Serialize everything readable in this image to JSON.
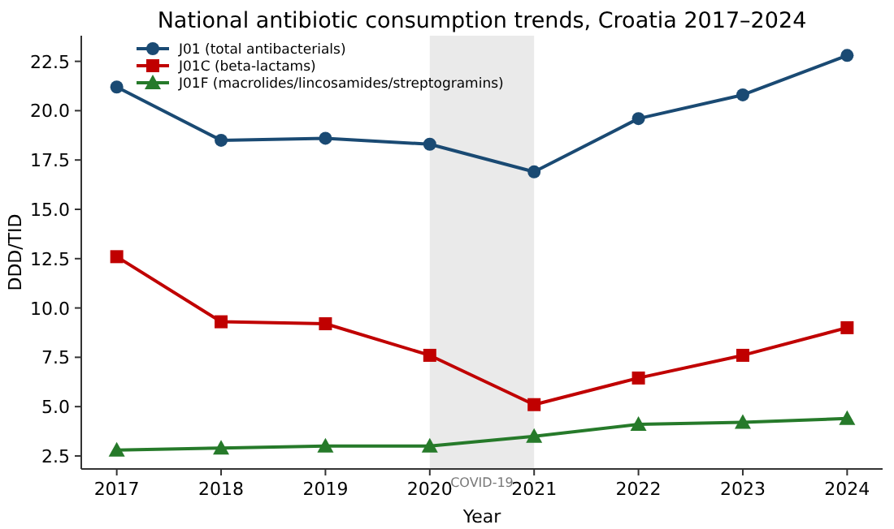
{
  "chart_data": {
    "type": "line",
    "title": "National antibiotic consumption trends, Croatia 2017–2024",
    "xlabel": "Year",
    "ylabel": "DDD/TID",
    "x": [
      2017,
      2018,
      2019,
      2020,
      2021,
      2022,
      2023,
      2024
    ],
    "series": [
      {
        "name": "J01 (total antibacterials)",
        "color": "#1a4a73",
        "marker": "circle",
        "values": [
          21.2,
          18.5,
          18.6,
          18.3,
          16.9,
          19.6,
          20.8,
          22.8
        ]
      },
      {
        "name": "J01C (beta-lactams)",
        "color": "#c00000",
        "marker": "square",
        "values": [
          12.6,
          9.3,
          9.2,
          7.6,
          5.1,
          6.45,
          7.6,
          9.0
        ]
      },
      {
        "name": "J01F (macrolides/lincosamides/streptogramins)",
        "color": "#267a2a",
        "marker": "triangle",
        "values": [
          2.8,
          2.9,
          3.0,
          3.0,
          3.5,
          4.1,
          4.2,
          4.4
        ]
      }
    ],
    "xlim": [
      2016.66,
      2024.34
    ],
    "xticks": [
      2017,
      2018,
      2019,
      2020,
      2021,
      2022,
      2023,
      2024
    ],
    "ylim": [
      1.84,
      23.8
    ],
    "yticks": [
      {
        "value": 2.5,
        "label": "2.5"
      },
      {
        "value": 5,
        "label": "5.0"
      },
      {
        "value": 7.5,
        "label": "7.5"
      },
      {
        "value": 10,
        "label": "10.0"
      },
      {
        "value": 12.5,
        "label": "12.5"
      },
      {
        "value": 15,
        "label": "15.0"
      },
      {
        "value": 17.5,
        "label": "17.5"
      },
      {
        "value": 20,
        "label": "20.0"
      },
      {
        "value": 22.5,
        "label": "22.5"
      }
    ],
    "bands": [
      {
        "axis": "x",
        "from": 2020,
        "to": 2021,
        "label": "COVID-19",
        "color": "#e8e8e8"
      }
    ],
    "legend": "top left",
    "grid": false,
    "line_style": "solid"
  }
}
